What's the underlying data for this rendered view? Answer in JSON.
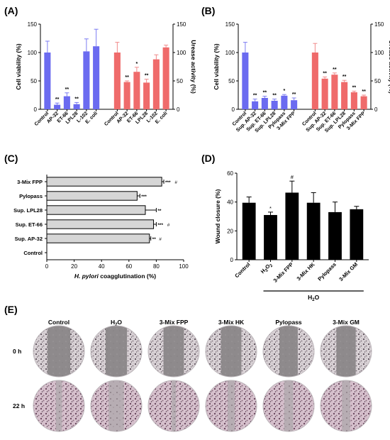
{
  "panels": {
    "A": "(A)",
    "B": "(B)",
    "C": "(C)",
    "D": "(D)",
    "E": "(E)"
  },
  "colors": {
    "blue": "#6b6bf0",
    "blue_err": "#7c7cf2",
    "red": "#ef6b6b",
    "red_err": "#f08a8a",
    "gray": "#d6d6d6",
    "black": "#000000"
  },
  "chart_data": [
    {
      "id": "A",
      "type": "bar",
      "ylabel": "Cell viability (%)",
      "y2label": "Urease activity (%)",
      "ylim": [
        0,
        150
      ],
      "yticks": [
        "0",
        "50",
        "100",
        "150"
      ],
      "groups": [
        {
          "name": "Cell viability",
          "color": "blue",
          "categories": [
            "Control",
            "AP-32",
            "ET-66",
            "LPL28",
            "L-102",
            "E. coli"
          ],
          "values": [
            100,
            8,
            23,
            9,
            102,
            111
          ],
          "errors": [
            20,
            3,
            6,
            3,
            22,
            30
          ],
          "marks": [
            "",
            "**",
            "**",
            "**",
            "",
            ""
          ]
        },
        {
          "name": "Urease activity",
          "color": "red",
          "categories": [
            "Control",
            "AP-32",
            "ET-66",
            "LPL28",
            "L-102",
            "E. coli"
          ],
          "values": [
            100,
            48,
            66,
            47,
            88,
            109
          ],
          "errors": [
            18,
            2,
            8,
            6,
            8,
            4
          ],
          "marks": [
            "",
            "**",
            "*",
            "**",
            "",
            ""
          ]
        }
      ]
    },
    {
      "id": "B",
      "type": "bar",
      "ylabel": "Cell viability (%)",
      "y2label": "Urease activity (%)",
      "ylim": [
        0,
        150
      ],
      "yticks": [
        "0",
        "50",
        "100",
        "150"
      ],
      "groups": [
        {
          "name": "Cell viability",
          "color": "blue",
          "categories": [
            "Control",
            "Sup. AP-32",
            "Sup. ET-66",
            "Sup. LPL28",
            "Pylopass",
            "3-Mix FPP"
          ],
          "values": [
            100,
            14,
            20,
            15,
            24,
            16
          ],
          "errors": [
            18,
            4,
            3,
            3,
            2,
            4
          ],
          "marks": [
            "",
            "**",
            "**",
            "**",
            "*",
            "**"
          ]
        },
        {
          "name": "Urease activity",
          "color": "red",
          "categories": [
            "Control",
            "Sup. AP-32",
            "Sup. ET-66",
            "Sup. LPL28",
            "Pylopass",
            "3-Mix FPP"
          ],
          "values": [
            100,
            54,
            61,
            48,
            30,
            23
          ],
          "errors": [
            16,
            3,
            3,
            3,
            2,
            2
          ],
          "marks": [
            "",
            "**",
            "**",
            "**",
            "**",
            "**"
          ]
        }
      ]
    },
    {
      "id": "C",
      "type": "bar",
      "orientation": "horizontal",
      "xlabel_italic": "H. pylori",
      "xlabel_rest": " coagglutination (%)",
      "xlim": [
        0,
        100
      ],
      "xticks": [
        "0",
        "20",
        "40",
        "60",
        "80",
        "100"
      ],
      "categories": [
        "3-Mix FPP",
        "Pylopass",
        "Sup. LPL28",
        "Sup. ET-66",
        "Sup. AP-32",
        "Control"
      ],
      "values": [
        84,
        66,
        72,
        78,
        75,
        0
      ],
      "errors": [
        1.5,
        2,
        8,
        2,
        1,
        0
      ],
      "marks": [
        "***",
        "***",
        "**",
        "***",
        "**",
        ""
      ],
      "hash": [
        "#",
        "",
        "",
        "#",
        "#",
        ""
      ]
    },
    {
      "id": "D",
      "type": "bar",
      "ylabel": "Wound closure (%)",
      "ylim": [
        0,
        60
      ],
      "yticks": [
        "0",
        "20",
        "40",
        "60"
      ],
      "categories": [
        "Control",
        "H2O2",
        "3-Mix FPP",
        "3-Mix HK",
        "Pylopass",
        "3-Mix GM"
      ],
      "category_labels": [
        {
          "main": "Control",
          "sub": "",
          "tail": ""
        },
        {
          "main": "H",
          "sub": "2",
          "tail": "O2"
        },
        {
          "main": "3-Mix FPP",
          "sub": "",
          "tail": ""
        },
        {
          "main": "3-Mix HK",
          "sub": "",
          "tail": ""
        },
        {
          "main": "Pylopass",
          "sub": "",
          "tail": ""
        },
        {
          "main": "3-Mix GM",
          "sub": "",
          "tail": ""
        }
      ],
      "values": [
        39.5,
        31,
        46.5,
        39.5,
        33,
        35
      ],
      "errors": [
        4,
        2,
        8,
        7,
        7,
        2
      ],
      "marks": [
        "",
        "*",
        "#",
        "",
        "",
        ""
      ],
      "bracket_label_main": "H",
      "bracket_label_sub": "2",
      "bracket_label_tail": "O"
    }
  ],
  "panel_e": {
    "columns": [
      {
        "main": "Control",
        "sub": "",
        "tail": ""
      },
      {
        "main": "H",
        "sub": "2",
        "tail": "O"
      },
      {
        "main": "3-Mix FPP",
        "sub": "",
        "tail": ""
      },
      {
        "main": "3-Mix HK",
        "sub": "",
        "tail": ""
      },
      {
        "main": "Pylopass",
        "sub": "",
        "tail": ""
      },
      {
        "main": "3-Mix GM",
        "sub": "",
        "tail": ""
      }
    ],
    "rows": [
      "0 h",
      "22 h"
    ],
    "gap_fraction_0h": [
      0.45,
      0.42,
      0.4,
      0.4,
      0.36,
      0.38
    ],
    "gap_fraction_22h": [
      0.12,
      0.3,
      0.08,
      0.14,
      0.18,
      0.16
    ]
  }
}
